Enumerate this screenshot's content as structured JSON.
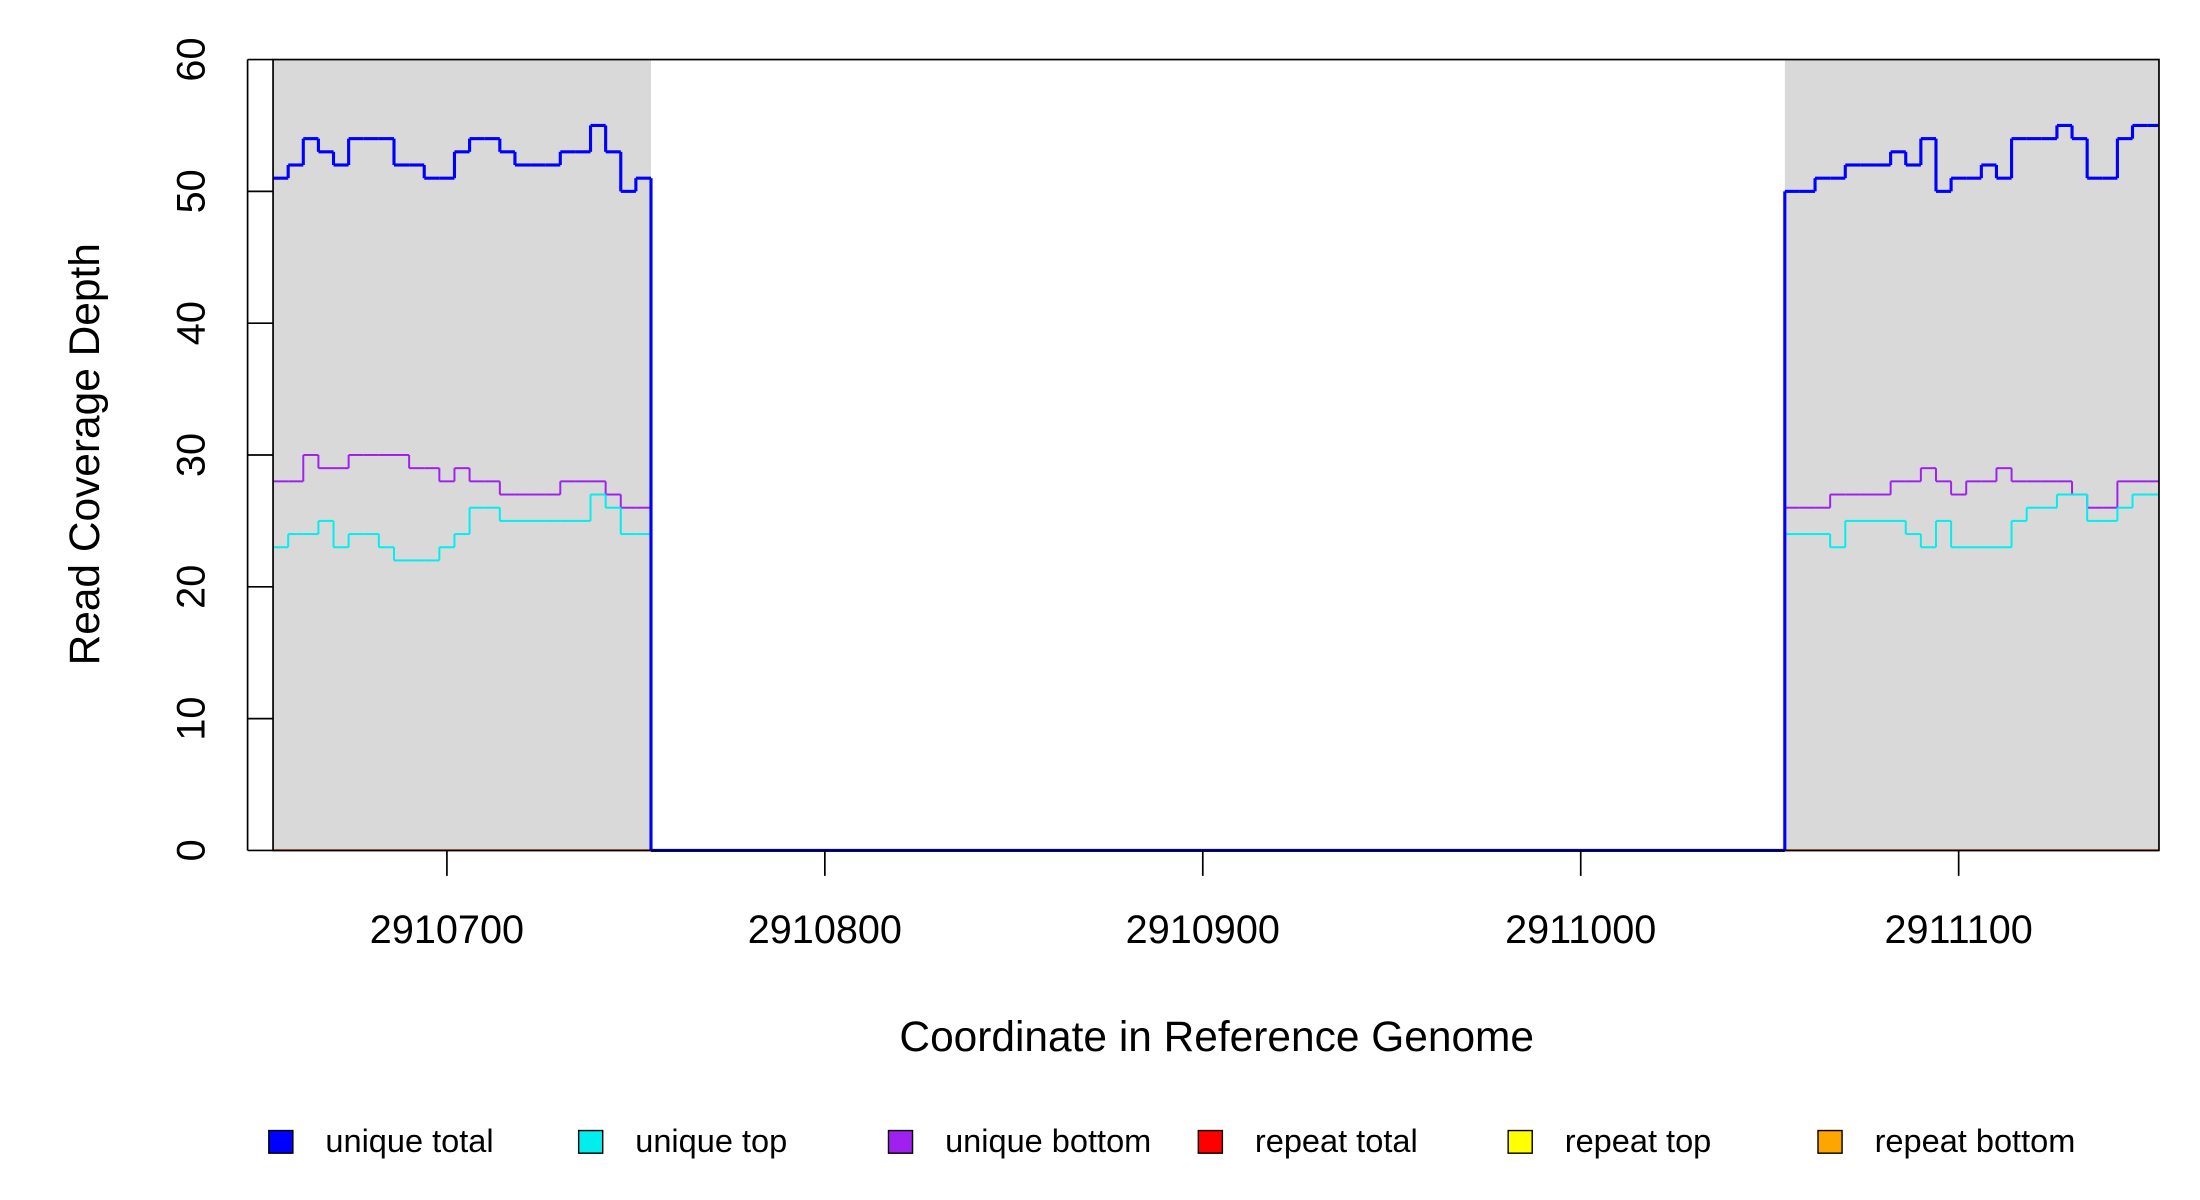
{
  "chart_data": {
    "type": "step",
    "x_label": "Coordinate in Reference Genome",
    "y_label": "Read Coverage Depth",
    "xlim": [
      2910654,
      2911153
    ],
    "ylim": [
      0,
      60
    ],
    "xticks": [
      2910700,
      2910800,
      2910900,
      2911000,
      2911100
    ],
    "yticks": [
      0,
      10,
      20,
      30,
      40,
      50,
      60
    ],
    "shaded_ranges": [
      [
        2910654,
        2910754
      ],
      [
        2911054,
        2911153
      ]
    ],
    "x": [
      2910654,
      2910658,
      2910662,
      2910666,
      2910670,
      2910674,
      2910678,
      2910682,
      2910686,
      2910690,
      2910694,
      2910698,
      2910702,
      2910706,
      2910710,
      2910714,
      2910718,
      2910722,
      2910726,
      2910730,
      2910734,
      2910738,
      2910742,
      2910746,
      2910750,
      2910754,
      2911054,
      2911058,
      2911062,
      2911066,
      2911070,
      2911074,
      2911078,
      2911082,
      2911086,
      2911090,
      2911094,
      2911098,
      2911102,
      2911106,
      2911110,
      2911114,
      2911118,
      2911122,
      2911126,
      2911130,
      2911134,
      2911138,
      2911142,
      2911146,
      2911150
    ],
    "series": [
      {
        "name": "unique total",
        "color": "#0000ff",
        "width": 2.2,
        "values": [
          51,
          52,
          54,
          53,
          52,
          54,
          54,
          54,
          52,
          52,
          51,
          51,
          53,
          54,
          54,
          53,
          52,
          52,
          52,
          53,
          53,
          55,
          53,
          50,
          51,
          0,
          50,
          50,
          51,
          51,
          52,
          52,
          52,
          53,
          52,
          54,
          50,
          51,
          51,
          52,
          51,
          54,
          54,
          54,
          55,
          54,
          51,
          51,
          54,
          55,
          55
        ]
      },
      {
        "name": "unique top",
        "color": "#00eeee",
        "width": 1.4,
        "values": [
          23,
          24,
          24,
          25,
          23,
          24,
          24,
          23,
          22,
          22,
          22,
          23,
          24,
          26,
          26,
          25,
          25,
          25,
          25,
          25,
          25,
          27,
          26,
          24,
          24,
          0,
          24,
          24,
          24,
          23,
          25,
          25,
          25,
          25,
          24,
          23,
          25,
          23,
          23,
          23,
          23,
          25,
          26,
          26,
          27,
          27,
          25,
          25,
          26,
          27,
          27
        ]
      },
      {
        "name": "unique bottom",
        "color": "#a020f0",
        "width": 1.4,
        "values": [
          28,
          28,
          30,
          29,
          29,
          30,
          30,
          30,
          30,
          29,
          29,
          28,
          29,
          28,
          28,
          27,
          27,
          27,
          27,
          28,
          28,
          28,
          27,
          26,
          26,
          0,
          26,
          26,
          26,
          27,
          27,
          27,
          27,
          28,
          28,
          29,
          28,
          27,
          28,
          28,
          29,
          28,
          28,
          28,
          28,
          27,
          26,
          26,
          28,
          28,
          28
        ]
      },
      {
        "name": "repeat total",
        "color": "#ff0000",
        "width": 1.4,
        "values": [
          0,
          0,
          0,
          0,
          0,
          0,
          0,
          0,
          0,
          0,
          0,
          0,
          0,
          0,
          0,
          0,
          0,
          0,
          0,
          0,
          0,
          0,
          0,
          0,
          0,
          0,
          0,
          0,
          0,
          0,
          0,
          0,
          0,
          0,
          0,
          0,
          0,
          0,
          0,
          0,
          0,
          0,
          0,
          0,
          0,
          0,
          0,
          0,
          0,
          0,
          0
        ]
      },
      {
        "name": "repeat top",
        "color": "#ffff00",
        "width": 1.4,
        "values": [
          0,
          0,
          0,
          0,
          0,
          0,
          0,
          0,
          0,
          0,
          0,
          0,
          0,
          0,
          0,
          0,
          0,
          0,
          0,
          0,
          0,
          0,
          0,
          0,
          0,
          0,
          0,
          0,
          0,
          0,
          0,
          0,
          0,
          0,
          0,
          0,
          0,
          0,
          0,
          0,
          0,
          0,
          0,
          0,
          0,
          0,
          0,
          0,
          0,
          0,
          0
        ]
      },
      {
        "name": "repeat bottom",
        "color": "#ffa500",
        "width": 1.4,
        "values": [
          0,
          0,
          0,
          0,
          0,
          0,
          0,
          0,
          0,
          0,
          0,
          0,
          0,
          0,
          0,
          0,
          0,
          0,
          0,
          0,
          0,
          0,
          0,
          0,
          0,
          0,
          0,
          0,
          0,
          0,
          0,
          0,
          0,
          0,
          0,
          0,
          0,
          0,
          0,
          0,
          0,
          0,
          0,
          0,
          0,
          0,
          0,
          0,
          0,
          0,
          0
        ]
      }
    ]
  }
}
